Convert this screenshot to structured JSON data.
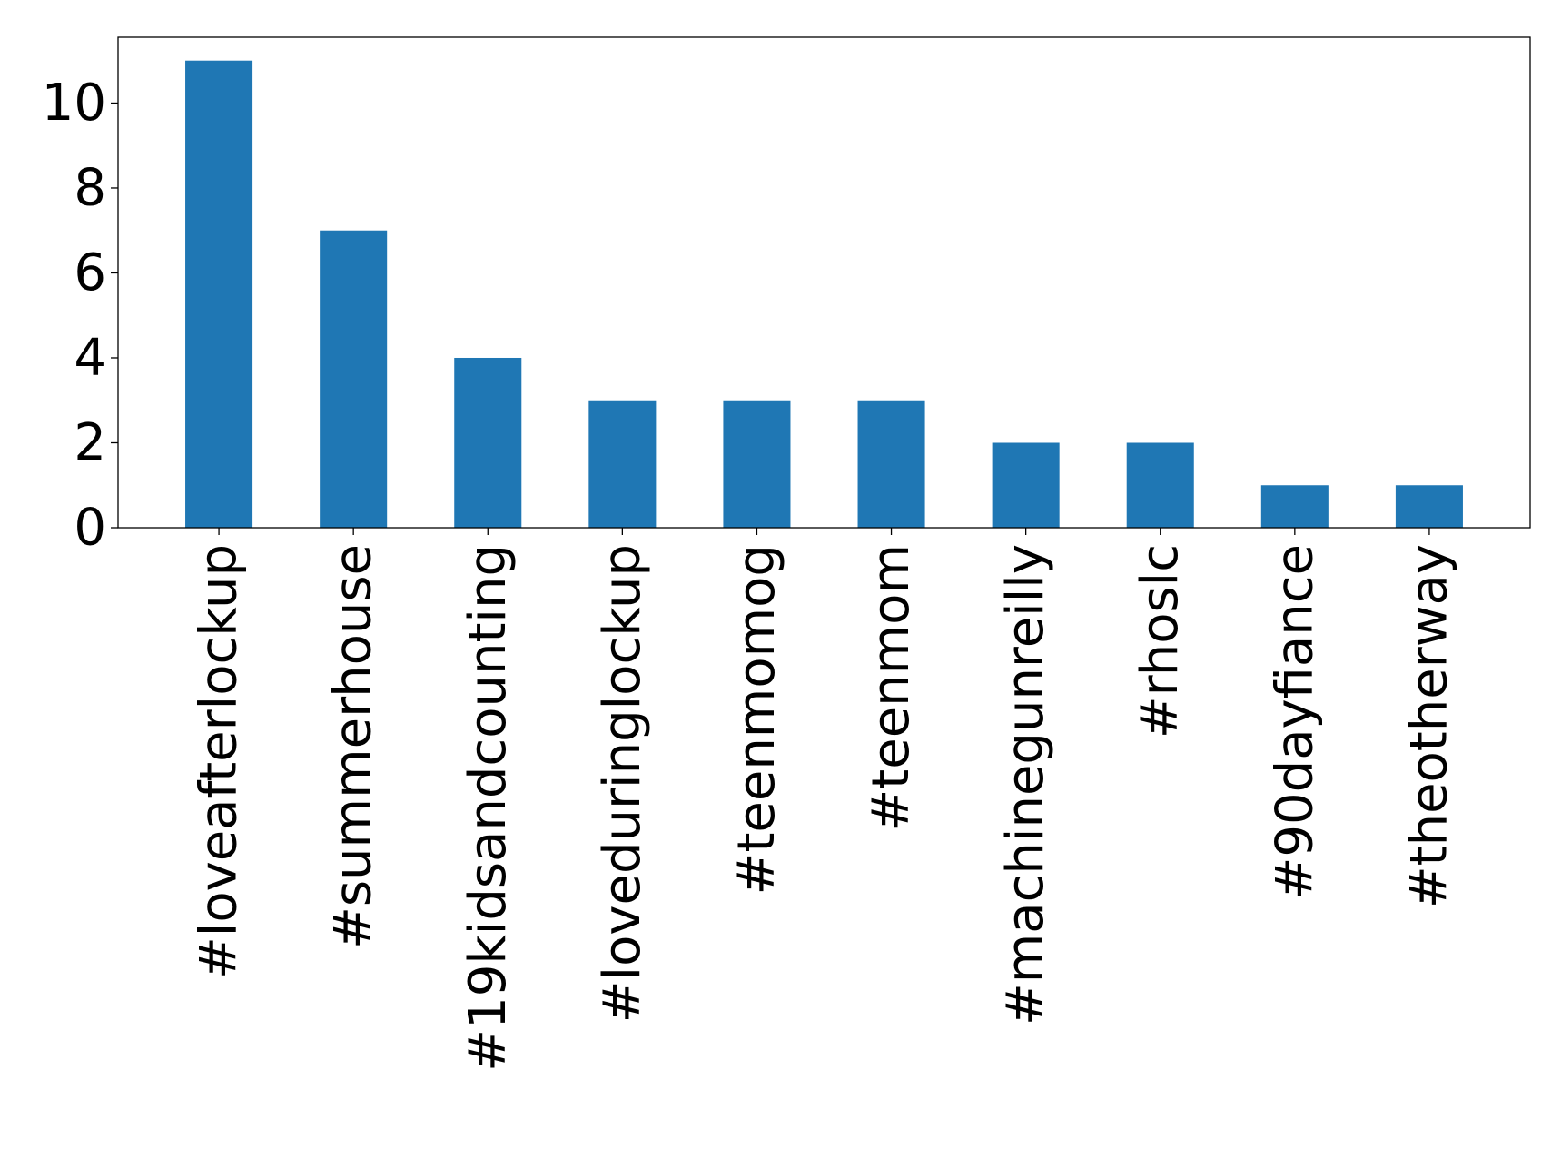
{
  "chart_data": {
    "type": "bar",
    "title": "",
    "xlabel": "",
    "ylabel": "",
    "categories": [
      "#loveafterlockup",
      "#summerhouse",
      "#19kidsandcounting",
      "#loveduringlockup",
      "#teenmomog",
      "#teenmom",
      "#machinegunreilly",
      "#rhoslc",
      "#90dayfiance",
      "#theotherway"
    ],
    "values": [
      11,
      7,
      4,
      3,
      3,
      3,
      2,
      2,
      1,
      1
    ],
    "ylim": [
      0,
      11.55
    ],
    "yticks": [
      0,
      2,
      4,
      6,
      8,
      10
    ],
    "grid": false,
    "legend": "none",
    "bar_color": "#1f77b4",
    "x_tick_rotation": "vertical"
  }
}
